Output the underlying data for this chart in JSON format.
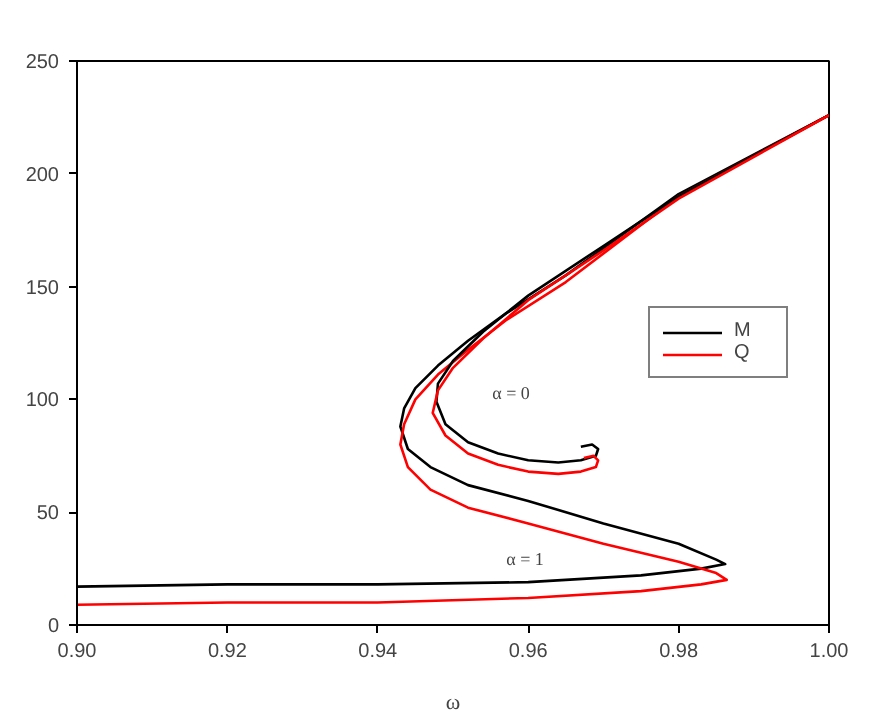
{
  "chart_data": {
    "type": "line",
    "xlabel": "ω",
    "xlim": [
      0.9,
      1.0
    ],
    "ylim": [
      0,
      250
    ],
    "xticks": [
      {
        "value": 0.9,
        "label": "0.90"
      },
      {
        "value": 0.92,
        "label": "0.92"
      },
      {
        "value": 0.94,
        "label": "0.94"
      },
      {
        "value": 0.96,
        "label": "0.96"
      },
      {
        "value": 0.98,
        "label": "0.98"
      },
      {
        "value": 1.0,
        "label": "1.00"
      }
    ],
    "yticks": [
      0,
      50,
      100,
      150,
      200,
      250
    ],
    "grid": false,
    "legend": "right",
    "marker": "none",
    "line_style": "solid",
    "series": [
      {
        "name": "M",
        "color": "#000000",
        "x": [
          0.9,
          0.92,
          0.94,
          0.96,
          0.975,
          0.983,
          0.9862,
          0.985,
          0.98,
          0.97,
          0.96,
          0.952,
          0.947,
          0.944,
          0.943,
          0.9435,
          0.945,
          0.948,
          0.952,
          0.957,
          0.965,
          0.98,
          1.0
        ],
        "values": [
          17,
          18,
          18,
          19,
          22,
          25,
          27,
          29,
          36,
          45,
          55,
          62,
          70,
          78,
          88,
          96,
          105,
          115,
          126,
          138,
          155,
          191,
          226
        ]
      },
      {
        "name": "Q",
        "color": "#ff0000",
        "x": [
          0.9,
          0.92,
          0.94,
          0.96,
          0.975,
          0.983,
          0.9864,
          0.985,
          0.98,
          0.97,
          0.96,
          0.952,
          0.947,
          0.944,
          0.943,
          0.9435,
          0.945,
          0.948,
          0.952,
          0.957,
          0.965,
          0.98,
          1.0
        ],
        "values": [
          9,
          10,
          10,
          12,
          15,
          18,
          20,
          23,
          28,
          36,
          45,
          52,
          60,
          70,
          80,
          89,
          100,
          111,
          122,
          135,
          152,
          190,
          226
        ]
      },
      {
        "color": "#000000",
        "x": [
          0.967,
          0.9685,
          0.9693,
          0.969,
          0.967,
          0.964,
          0.96,
          0.956,
          0.952,
          0.949,
          0.9478,
          0.948,
          0.95,
          0.954,
          0.96,
          0.97,
          0.98,
          1.0
        ],
        "values": [
          79,
          80,
          78,
          75,
          73,
          72,
          73,
          76,
          81,
          89,
          99,
          107,
          117,
          130,
          146,
          168,
          190,
          226
        ]
      },
      {
        "color": "#ff0000",
        "x": [
          0.9674,
          0.9687,
          0.9693,
          0.969,
          0.967,
          0.964,
          0.96,
          0.956,
          0.952,
          0.949,
          0.9473,
          0.948,
          0.95,
          0.954,
          0.96,
          0.97,
          0.98,
          1.0
        ],
        "values": [
          74,
          75,
          73,
          70,
          68,
          67,
          68,
          71,
          76,
          84,
          94,
          104,
          114,
          127,
          144,
          166,
          189,
          226
        ]
      }
    ],
    "annotations": [
      "α = 0",
      "α = 1"
    ]
  }
}
